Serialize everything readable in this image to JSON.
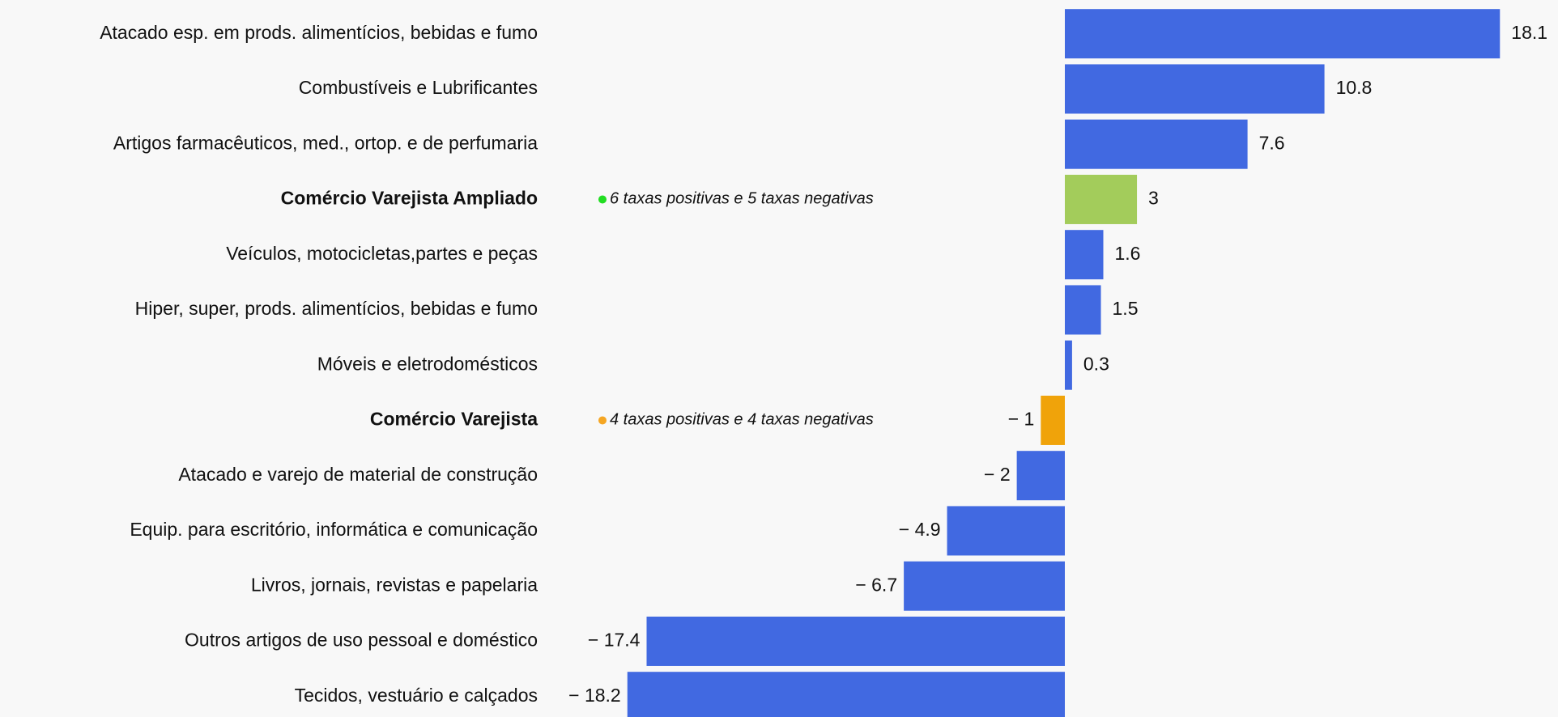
{
  "chart_data": {
    "type": "hbar",
    "categories": [
      "Atacado esp. em prods. alimentícios, bebidas e fumo",
      "Combustíveis e Lubrificantes",
      "Artigos farmacêuticos, med., ortop. e de perfumaria",
      "Comércio Varejista Ampliado",
      "Veículos, motocicletas,partes e peças",
      "Hiper, super, prods.  alimentícios, bebidas e fumo",
      "Móveis e eletrodomésticos",
      "Comércio Varejista",
      "Atacado e varejo de material de construção",
      "Equip. para escritório, informática e comunicação",
      "Livros, jornais, revistas e papelaria",
      "Outros artigos de uso pessoal e doméstico",
      "Tecidos, vestuário e calçados"
    ],
    "values": [
      18.1,
      10.8,
      7.6,
      3,
      1.6,
      1.5,
      0.3,
      -1,
      -2,
      -4.9,
      -6.7,
      -17.4,
      -18.2
    ],
    "value_labels": [
      "18.1",
      "10.8",
      "7.6",
      "3",
      "1.6",
      "1.5",
      "0.3",
      "− 1",
      "− 2",
      "− 4.9",
      "− 6.7",
      "− 17.4",
      "− 18.2"
    ],
    "colors": [
      "#4169e1",
      "#4169e1",
      "#4169e1",
      "#a3cc5b",
      "#4169e1",
      "#4169e1",
      "#4169e1",
      "#f0a30a",
      "#4169e1",
      "#4169e1",
      "#4169e1",
      "#4169e1",
      "#4169e1"
    ],
    "notes": [
      null,
      null,
      null,
      "6 taxas positivas e 5 taxas negativas",
      null,
      null,
      null,
      "4 taxas positivas e 4 taxas negativas",
      null,
      null,
      null,
      null,
      null
    ],
    "note_colors": [
      null,
      null,
      null,
      "#22dd22",
      null,
      null,
      null,
      "#f5a623",
      null,
      null,
      null,
      null,
      null
    ],
    "xlim": [
      -19,
      19
    ]
  }
}
